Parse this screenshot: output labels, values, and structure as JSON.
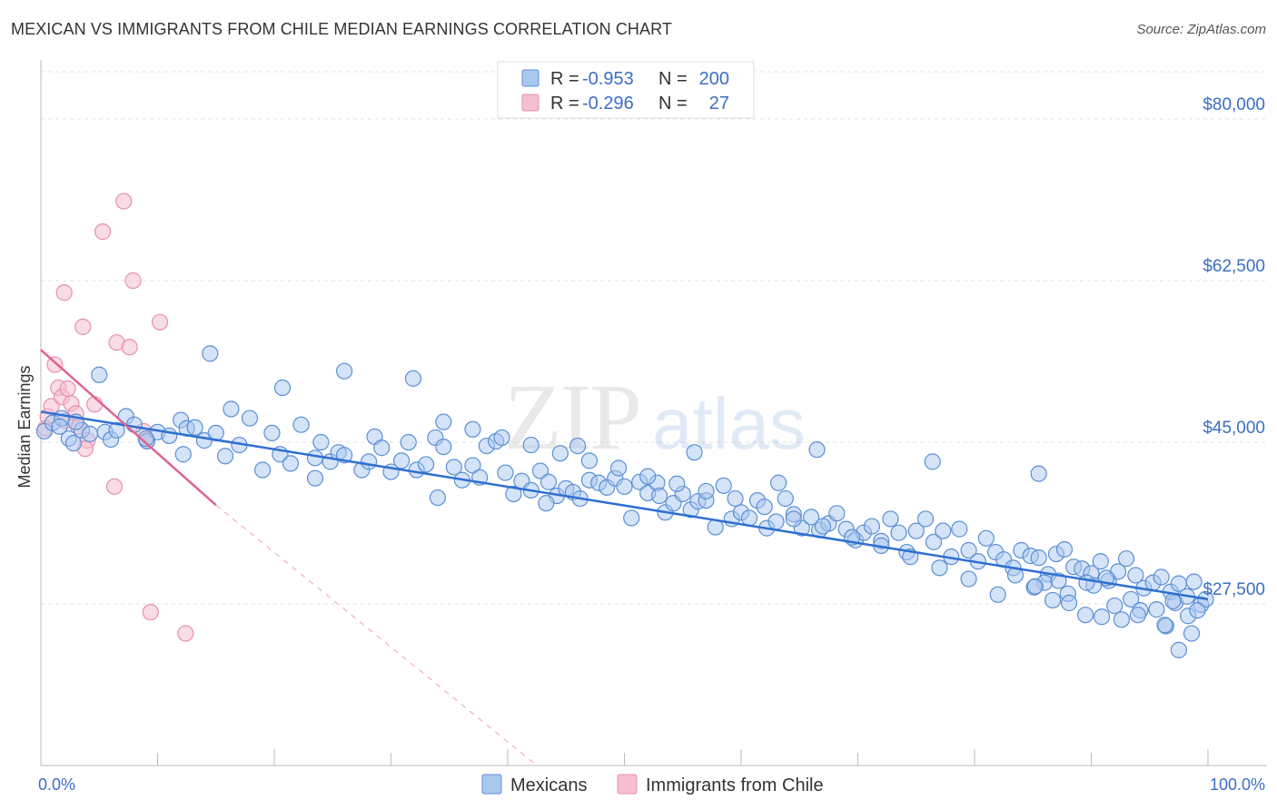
{
  "header": {
    "title": "MEXICAN VS IMMIGRANTS FROM CHILE MEDIAN EARNINGS CORRELATION CHART",
    "source": "Source: ZipAtlas.com"
  },
  "watermark": {
    "zip": "ZIP",
    "atlas": "atlas"
  },
  "colors": {
    "blue_fill": "#a9c8f0",
    "blue_stroke": "#5b8fd6",
    "blue_line": "#2f6fd1",
    "pink_fill": "#f6bfd0",
    "pink_stroke": "#e690ac",
    "pink_line": "#e0628e",
    "axis_label": "#3a6fc4",
    "grid": "#e2e2e2"
  },
  "legend": {
    "rows": [
      {
        "r_label": "R = ",
        "r_value": "-0.953",
        "n_label": "N = ",
        "n_value": "200",
        "swatch": "blue"
      },
      {
        "r_label": "R = ",
        "r_value": "-0.296",
        "n_label": "N = ",
        "n_value": "27",
        "swatch": "pink"
      }
    ]
  },
  "bottom_legend": {
    "items": [
      "Mexicans",
      "Immigrants from Chile"
    ]
  },
  "chart_data": {
    "type": "scatter",
    "title": "MEXICAN VS IMMIGRANTS FROM CHILE MEDIAN EARNINGS CORRELATION CHART",
    "xlabel": "",
    "ylabel": "Median Earnings",
    "xlim": [
      0,
      100
    ],
    "ylim": [
      10000,
      86000
    ],
    "x_tick_labels": [
      "0.0%",
      "100.0%"
    ],
    "y_ticks": [
      27500,
      45000,
      62500,
      80000
    ],
    "y_tick_labels": [
      "$27,500",
      "$45,000",
      "$62,500",
      "$80,000"
    ],
    "grid": true,
    "legend_position": "top-center",
    "series": [
      {
        "name": "Mexicans",
        "color": "#a9c8f0",
        "trend": {
          "x": [
            0,
            100
          ],
          "y": [
            48300,
            28000
          ]
        },
        "points": [
          [
            0.3,
            46200
          ],
          [
            1.0,
            47100
          ],
          [
            1.8,
            47600
          ],
          [
            2.4,
            45400
          ],
          [
            2.8,
            44900
          ],
          [
            3.5,
            46300
          ],
          [
            4.2,
            45900
          ],
          [
            5.5,
            46100
          ],
          [
            6.0,
            45300
          ],
          [
            7.3,
            47800
          ],
          [
            8.0,
            46900
          ],
          [
            9.1,
            45100
          ],
          [
            10.0,
            46100
          ],
          [
            11.0,
            45700
          ],
          [
            12.0,
            47400
          ],
          [
            12.5,
            46500
          ],
          [
            13.2,
            46600
          ],
          [
            14.0,
            45200
          ],
          [
            15.0,
            46000
          ],
          [
            15.8,
            43500
          ],
          [
            16.3,
            48600
          ],
          [
            17.0,
            44700
          ],
          [
            17.9,
            47600
          ],
          [
            19.0,
            42000
          ],
          [
            19.8,
            46000
          ],
          [
            20.5,
            43700
          ],
          [
            21.4,
            42700
          ],
          [
            22.3,
            46900
          ],
          [
            23.5,
            43300
          ],
          [
            24.0,
            45000
          ],
          [
            24.8,
            42900
          ],
          [
            25.5,
            43900
          ],
          [
            26.0,
            43600
          ],
          [
            27.5,
            42000
          ],
          [
            28.1,
            42900
          ],
          [
            28.6,
            45600
          ],
          [
            29.2,
            44400
          ],
          [
            30.0,
            41800
          ],
          [
            30.9,
            43000
          ],
          [
            31.5,
            45000
          ],
          [
            32.2,
            42000
          ],
          [
            33.0,
            42600
          ],
          [
            33.8,
            45500
          ],
          [
            34.5,
            44500
          ],
          [
            35.4,
            42300
          ],
          [
            36.1,
            40900
          ],
          [
            37.0,
            42500
          ],
          [
            37.6,
            41200
          ],
          [
            38.2,
            44600
          ],
          [
            39.0,
            45100
          ],
          [
            39.8,
            41700
          ],
          [
            40.5,
            39400
          ],
          [
            41.2,
            40800
          ],
          [
            42.0,
            39800
          ],
          [
            42.8,
            41900
          ],
          [
            43.5,
            40700
          ],
          [
            44.2,
            39200
          ],
          [
            45.0,
            40000
          ],
          [
            45.6,
            39600
          ],
          [
            46.2,
            38900
          ],
          [
            47.0,
            40900
          ],
          [
            47.8,
            40600
          ],
          [
            48.5,
            40100
          ],
          [
            49.2,
            41100
          ],
          [
            50.0,
            40200
          ],
          [
            50.6,
            36800
          ],
          [
            51.3,
            40700
          ],
          [
            52.0,
            39500
          ],
          [
            52.8,
            40600
          ],
          [
            53.5,
            37400
          ],
          [
            54.2,
            38400
          ],
          [
            55.0,
            39400
          ],
          [
            55.7,
            37700
          ],
          [
            56.3,
            38600
          ],
          [
            57.0,
            38700
          ],
          [
            57.8,
            35800
          ],
          [
            58.5,
            40300
          ],
          [
            59.2,
            36700
          ],
          [
            60.0,
            37400
          ],
          [
            60.7,
            36800
          ],
          [
            61.4,
            38700
          ],
          [
            62.2,
            35700
          ],
          [
            63.0,
            36400
          ],
          [
            63.8,
            38900
          ],
          [
            64.5,
            37200
          ],
          [
            65.2,
            35700
          ],
          [
            66.0,
            36900
          ],
          [
            66.7,
            35500
          ],
          [
            67.5,
            36200
          ],
          [
            68.2,
            37300
          ],
          [
            69.0,
            35600
          ],
          [
            69.8,
            34400
          ],
          [
            70.5,
            35200
          ],
          [
            71.2,
            35900
          ],
          [
            72.0,
            34300
          ],
          [
            72.8,
            36700
          ],
          [
            73.5,
            35200
          ],
          [
            74.2,
            33100
          ],
          [
            75.0,
            35400
          ],
          [
            75.8,
            36700
          ],
          [
            76.5,
            34200
          ],
          [
            77.3,
            35400
          ],
          [
            78.0,
            32600
          ],
          [
            78.7,
            35600
          ],
          [
            79.5,
            33300
          ],
          [
            80.3,
            32100
          ],
          [
            81.0,
            34600
          ],
          [
            81.8,
            33100
          ],
          [
            82.5,
            32300
          ],
          [
            83.3,
            31400
          ],
          [
            84.0,
            33300
          ],
          [
            84.8,
            32700
          ],
          [
            85.5,
            32500
          ],
          [
            86.3,
            30700
          ],
          [
            87.0,
            32900
          ],
          [
            87.7,
            33400
          ],
          [
            88.5,
            31500
          ],
          [
            89.2,
            31300
          ],
          [
            90.0,
            30800
          ],
          [
            90.8,
            32100
          ],
          [
            91.5,
            30000
          ],
          [
            92.3,
            31000
          ],
          [
            93.0,
            32400
          ],
          [
            93.8,
            30600
          ],
          [
            94.5,
            29200
          ],
          [
            95.3,
            29800
          ],
          [
            96.0,
            30400
          ],
          [
            96.8,
            28800
          ],
          [
            97.5,
            29700
          ],
          [
            97.2,
            27600
          ],
          [
            98.2,
            28300
          ],
          [
            98.8,
            29900
          ],
          [
            99.4,
            27400
          ],
          [
            99.8,
            28000
          ],
          [
            86.0,
            29800
          ],
          [
            88.0,
            28600
          ],
          [
            90.2,
            29500
          ],
          [
            92.0,
            27300
          ],
          [
            93.4,
            28000
          ],
          [
            94.2,
            26800
          ],
          [
            95.6,
            26900
          ],
          [
            96.4,
            25100
          ],
          [
            97.0,
            27800
          ],
          [
            98.3,
            26200
          ],
          [
            99.1,
            26800
          ],
          [
            83.5,
            30600
          ],
          [
            85.1,
            29300
          ],
          [
            87.2,
            30000
          ],
          [
            89.6,
            29800
          ],
          [
            91.3,
            30300
          ],
          [
            5.0,
            52300
          ],
          [
            14.5,
            54600
          ],
          [
            26.0,
            52700
          ],
          [
            20.7,
            50900
          ],
          [
            31.9,
            51900
          ],
          [
            46.0,
            44600
          ],
          [
            56.0,
            43900
          ],
          [
            66.5,
            44200
          ],
          [
            76.4,
            42900
          ],
          [
            85.5,
            41600
          ],
          [
            63.2,
            40600
          ],
          [
            53.0,
            39200
          ],
          [
            43.3,
            38400
          ],
          [
            34.0,
            39000
          ],
          [
            23.5,
            41100
          ],
          [
            12.2,
            43700
          ],
          [
            9.0,
            45400
          ],
          [
            6.5,
            46300
          ],
          [
            3.0,
            47200
          ],
          [
            1.6,
            46700
          ],
          [
            97.5,
            22500
          ],
          [
            98.6,
            24300
          ],
          [
            96.3,
            25200
          ],
          [
            94.0,
            26300
          ],
          [
            92.6,
            25800
          ],
          [
            90.9,
            26100
          ],
          [
            89.5,
            26300
          ],
          [
            88.1,
            27600
          ],
          [
            86.7,
            27900
          ],
          [
            85.2,
            29400
          ],
          [
            82.0,
            28500
          ],
          [
            79.5,
            30200
          ],
          [
            77.0,
            31400
          ],
          [
            74.5,
            32600
          ],
          [
            72.0,
            33800
          ],
          [
            69.5,
            34700
          ],
          [
            67.0,
            35900
          ],
          [
            64.5,
            36700
          ],
          [
            62.0,
            38000
          ],
          [
            59.5,
            38900
          ],
          [
            57.0,
            39700
          ],
          [
            54.5,
            40500
          ],
          [
            52.0,
            41300
          ],
          [
            49.5,
            42200
          ],
          [
            47.0,
            43000
          ],
          [
            44.5,
            43800
          ],
          [
            42.0,
            44700
          ],
          [
            39.5,
            45500
          ],
          [
            37.0,
            46400
          ],
          [
            34.5,
            47200
          ]
        ]
      },
      {
        "name": "Immigrants from Chile",
        "color": "#f6bfd0",
        "trend": {
          "x": [
            0,
            15
          ],
          "y": [
            55000,
            38200
          ]
        },
        "trend_extended": {
          "x": [
            15,
            42.5
          ],
          "y": [
            38200,
            8000
          ]
        },
        "points": [
          [
            0.4,
            46500
          ],
          [
            0.6,
            47800
          ],
          [
            0.9,
            48900
          ],
          [
            1.2,
            53400
          ],
          [
            1.5,
            50900
          ],
          [
            1.8,
            49900
          ],
          [
            2.0,
            61200
          ],
          [
            2.3,
            50800
          ],
          [
            2.6,
            49200
          ],
          [
            3.0,
            48100
          ],
          [
            3.2,
            46700
          ],
          [
            3.6,
            57500
          ],
          [
            4.0,
            45200
          ],
          [
            3.8,
            44300
          ],
          [
            4.6,
            49100
          ],
          [
            5.3,
            67800
          ],
          [
            6.3,
            40200
          ],
          [
            6.5,
            55800
          ],
          [
            7.1,
            71100
          ],
          [
            7.6,
            55300
          ],
          [
            7.9,
            62500
          ],
          [
            8.8,
            46200
          ],
          [
            9.1,
            45200
          ],
          [
            10.2,
            58000
          ],
          [
            9.4,
            26600
          ],
          [
            12.4,
            24300
          ],
          [
            2.1,
            47300
          ]
        ]
      }
    ]
  }
}
